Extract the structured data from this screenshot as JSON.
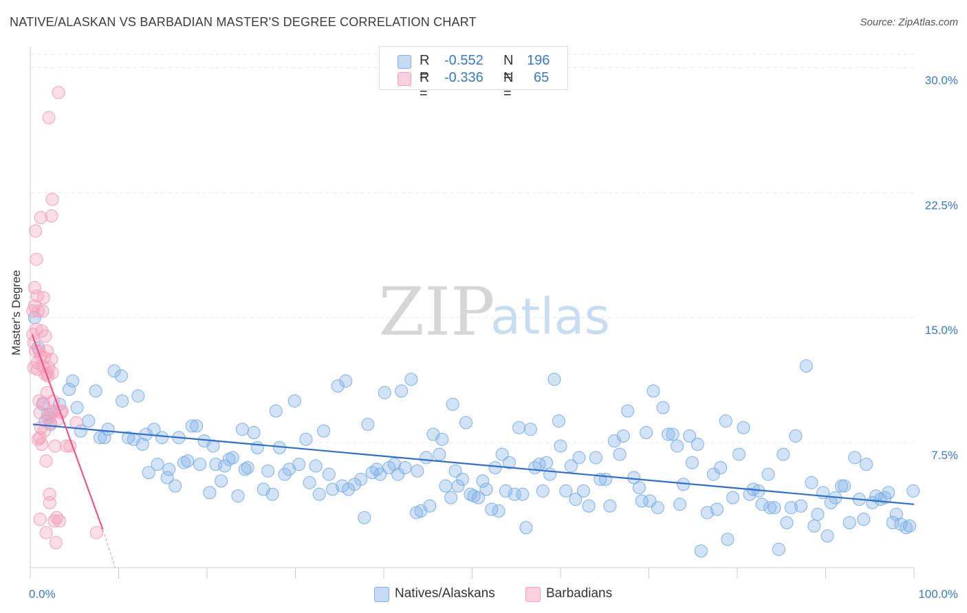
{
  "title": "NATIVE/ALASKAN VS BARBADIAN MASTER'S DEGREE CORRELATION CHART",
  "source": "Source: ZipAtlas.com",
  "watermark": {
    "zip": "ZIP",
    "atlas": "atlas"
  },
  "legend": {
    "rows": [
      {
        "r_label": "R =",
        "r_value": "-0.552",
        "n_label": "N =",
        "n_value": "196",
        "color": "#7eb0e8"
      },
      {
        "r_label": "R =",
        "r_value": "-0.336",
        "n_label": "N =",
        "n_value": "65",
        "color": "#f4a0bb"
      }
    ]
  },
  "chart_data": {
    "type": "scatter",
    "title": "NATIVE/ALASKAN VS BARBADIAN MASTER'S DEGREE CORRELATION CHART",
    "xlabel": "",
    "ylabel": "Master's Degree",
    "xlim": [
      0,
      100
    ],
    "ylim": [
      0,
      30.8
    ],
    "x_tick_labels": [
      "0.0%",
      "100.0%"
    ],
    "y_ticks": [
      7.5,
      15.0,
      22.5,
      30.0
    ],
    "y_tick_labels": [
      "7.5%",
      "15.0%",
      "22.5%",
      "30.0%"
    ],
    "grid": true,
    "legend_position": "bottom-center",
    "series": [
      {
        "name": "Natives/Alaskans",
        "color": "#7eb0e8",
        "line_color": "#2e6fcc",
        "trendline": {
          "x": [
            0.3,
            100
          ],
          "y": [
            8.6,
            3.8
          ]
        },
        "points": [
          [
            0.5,
            15.0
          ],
          [
            0.9,
            13.2
          ],
          [
            1.4,
            9.8
          ],
          [
            1.7,
            8.8
          ],
          [
            2.0,
            9.2
          ],
          [
            2.3,
            8.6
          ],
          [
            2.6,
            9.4
          ],
          [
            3.3,
            9.8
          ],
          [
            4.4,
            10.7
          ],
          [
            4.8,
            11.2
          ],
          [
            5.3,
            9.6
          ],
          [
            5.7,
            8.2
          ],
          [
            6.6,
            8.8
          ],
          [
            7.4,
            10.6
          ],
          [
            7.9,
            7.8
          ],
          [
            8.4,
            7.8
          ],
          [
            8.8,
            8.3
          ],
          [
            9.5,
            11.8
          ],
          [
            10.3,
            11.5
          ],
          [
            10.4,
            10.0
          ],
          [
            11.1,
            7.8
          ],
          [
            11.7,
            7.7
          ],
          [
            12.2,
            10.3
          ],
          [
            12.7,
            7.4
          ],
          [
            13.1,
            8.0
          ],
          [
            13.4,
            5.7
          ],
          [
            14.0,
            8.3
          ],
          [
            14.4,
            6.2
          ],
          [
            14.9,
            7.8
          ],
          [
            15.5,
            5.4
          ],
          [
            15.7,
            5.9
          ],
          [
            16.4,
            4.9
          ],
          [
            16.8,
            7.8
          ],
          [
            17.4,
            6.3
          ],
          [
            17.8,
            6.4
          ],
          [
            18.3,
            8.5
          ],
          [
            18.8,
            8.5
          ],
          [
            19.2,
            6.2
          ],
          [
            19.7,
            7.6
          ],
          [
            20.3,
            4.5
          ],
          [
            20.7,
            7.3
          ],
          [
            21.0,
            6.2
          ],
          [
            21.6,
            5.2
          ],
          [
            22.0,
            6.1
          ],
          [
            22.5,
            6.5
          ],
          [
            22.9,
            6.6
          ],
          [
            23.5,
            4.3
          ],
          [
            24.0,
            8.3
          ],
          [
            24.3,
            5.9
          ],
          [
            24.6,
            6.0
          ],
          [
            25.3,
            8.1
          ],
          [
            25.7,
            7.2
          ],
          [
            26.4,
            4.7
          ],
          [
            26.9,
            5.8
          ],
          [
            27.4,
            4.4
          ],
          [
            27.8,
            9.4
          ],
          [
            28.2,
            7.2
          ],
          [
            28.8,
            5.6
          ],
          [
            29.3,
            5.9
          ],
          [
            29.9,
            10.0
          ],
          [
            30.4,
            6.2
          ],
          [
            31.2,
            7.7
          ],
          [
            31.6,
            5.1
          ],
          [
            32.3,
            6.1
          ],
          [
            32.7,
            4.4
          ],
          [
            33.2,
            8.2
          ],
          [
            33.8,
            5.6
          ],
          [
            34.2,
            4.7
          ],
          [
            34.8,
            10.9
          ],
          [
            35.3,
            4.9
          ],
          [
            35.7,
            11.2
          ],
          [
            36.0,
            4.7
          ],
          [
            36.7,
            5.0
          ],
          [
            37.4,
            5.3
          ],
          [
            37.8,
            3.0
          ],
          [
            38.2,
            8.6
          ],
          [
            38.7,
            5.7
          ],
          [
            39.2,
            5.9
          ],
          [
            39.6,
            5.6
          ],
          [
            40.1,
            10.5
          ],
          [
            40.6,
            6.0
          ],
          [
            41.2,
            6.2
          ],
          [
            41.6,
            5.6
          ],
          [
            42.0,
            10.6
          ],
          [
            42.4,
            6.0
          ],
          [
            43.1,
            11.3
          ],
          [
            43.7,
            3.3
          ],
          [
            43.8,
            5.8
          ],
          [
            44.2,
            3.4
          ],
          [
            44.8,
            6.6
          ],
          [
            45.2,
            3.7
          ],
          [
            45.6,
            8.0
          ],
          [
            46.3,
            6.8
          ],
          [
            46.6,
            7.7
          ],
          [
            47.0,
            4.9
          ],
          [
            47.6,
            4.2
          ],
          [
            47.8,
            9.8
          ],
          [
            48.1,
            5.8
          ],
          [
            48.4,
            4.9
          ],
          [
            48.9,
            5.3
          ],
          [
            49.3,
            8.7
          ],
          [
            49.8,
            4.4
          ],
          [
            50.2,
            4.3
          ],
          [
            50.7,
            4.2
          ],
          [
            51.2,
            5.2
          ],
          [
            51.6,
            4.7
          ],
          [
            52.2,
            3.5
          ],
          [
            52.6,
            6.0
          ],
          [
            53.0,
            3.4
          ],
          [
            53.4,
            6.8
          ],
          [
            53.8,
            4.6
          ],
          [
            54.2,
            6.3
          ],
          [
            54.8,
            4.4
          ],
          [
            55.3,
            8.4
          ],
          [
            55.7,
            4.4
          ],
          [
            56.1,
            2.4
          ],
          [
            56.6,
            8.3
          ],
          [
            57.1,
            6.0
          ],
          [
            57.6,
            6.2
          ],
          [
            58.0,
            4.6
          ],
          [
            58.4,
            6.3
          ],
          [
            58.8,
            5.6
          ],
          [
            59.3,
            11.3
          ],
          [
            59.8,
            8.8
          ],
          [
            60.0,
            7.3
          ],
          [
            60.6,
            4.6
          ],
          [
            61.2,
            6.1
          ],
          [
            61.7,
            4.1
          ],
          [
            62.1,
            6.6
          ],
          [
            62.6,
            4.6
          ],
          [
            63.2,
            3.7
          ],
          [
            64.0,
            6.6
          ],
          [
            64.5,
            5.3
          ],
          [
            65.1,
            5.3
          ],
          [
            65.6,
            3.7
          ],
          [
            66.1,
            7.6
          ],
          [
            66.7,
            6.8
          ],
          [
            67.1,
            7.9
          ],
          [
            67.6,
            9.4
          ],
          [
            68.3,
            5.4
          ],
          [
            68.9,
            4.8
          ],
          [
            69.2,
            4.0
          ],
          [
            69.7,
            8.1
          ],
          [
            70.1,
            4.0
          ],
          [
            70.5,
            10.6
          ],
          [
            71.0,
            3.6
          ],
          [
            71.6,
            9.6
          ],
          [
            72.2,
            8.0
          ],
          [
            72.7,
            8.0
          ],
          [
            73.2,
            7.3
          ],
          [
            73.5,
            3.8
          ],
          [
            73.9,
            5.0
          ],
          [
            74.6,
            7.9
          ],
          [
            74.9,
            6.3
          ],
          [
            75.5,
            7.4
          ],
          [
            75.9,
            1.0
          ],
          [
            76.6,
            3.3
          ],
          [
            77.3,
            5.6
          ],
          [
            77.7,
            3.5
          ],
          [
            78.1,
            6.0
          ],
          [
            78.7,
            8.8
          ],
          [
            78.9,
            1.7
          ],
          [
            79.5,
            4.2
          ],
          [
            80.2,
            6.8
          ],
          [
            80.7,
            8.4
          ],
          [
            81.4,
            4.4
          ],
          [
            81.8,
            4.7
          ],
          [
            82.4,
            4.6
          ],
          [
            82.8,
            3.8
          ],
          [
            83.5,
            5.6
          ],
          [
            83.7,
            3.6
          ],
          [
            84.2,
            3.6
          ],
          [
            84.7,
            1.1
          ],
          [
            85.2,
            6.8
          ],
          [
            85.6,
            2.7
          ],
          [
            86.1,
            3.6
          ],
          [
            86.6,
            7.9
          ],
          [
            87.2,
            3.7
          ],
          [
            87.8,
            12.1
          ],
          [
            88.4,
            5.1
          ],
          [
            88.7,
            2.5
          ],
          [
            89.1,
            3.2
          ],
          [
            89.7,
            4.5
          ],
          [
            90.2,
            1.9
          ],
          [
            90.6,
            3.9
          ],
          [
            91.1,
            4.2
          ],
          [
            91.8,
            4.9
          ],
          [
            92.1,
            4.9
          ],
          [
            92.7,
            2.7
          ],
          [
            93.3,
            6.6
          ],
          [
            93.8,
            4.1
          ],
          [
            94.3,
            2.9
          ],
          [
            94.6,
            6.2
          ],
          [
            95.3,
            3.9
          ],
          [
            95.7,
            4.3
          ],
          [
            96.2,
            4.1
          ],
          [
            96.7,
            4.2
          ],
          [
            97.1,
            4.5
          ],
          [
            97.6,
            2.7
          ],
          [
            98.0,
            3.2
          ],
          [
            98.5,
            2.6
          ],
          [
            99.1,
            2.4
          ],
          [
            99.5,
            2.5
          ],
          [
            99.9,
            4.6
          ]
        ]
      },
      {
        "name": "Barbadians",
        "color": "#f4a0bb",
        "line_color": "#e8578c",
        "trendline": {
          "x": [
            0.2,
            8.2
          ],
          "y": [
            14.0,
            2.3
          ]
        },
        "trendline_dashed": {
          "x": [
            8.2,
            9.6
          ],
          "y": [
            2.3,
            0.0
          ]
        },
        "points": [
          [
            0.3,
            15.4
          ],
          [
            0.3,
            14.0
          ],
          [
            0.4,
            13.5
          ],
          [
            0.4,
            12.0
          ],
          [
            0.5,
            16.8
          ],
          [
            0.5,
            15.7
          ],
          [
            0.6,
            20.2
          ],
          [
            0.6,
            13.0
          ],
          [
            0.7,
            18.5
          ],
          [
            0.7,
            14.3
          ],
          [
            0.8,
            12.3
          ],
          [
            0.8,
            16.3
          ],
          [
            0.8,
            11.9
          ],
          [
            0.9,
            15.4
          ],
          [
            0.9,
            7.7
          ],
          [
            1.0,
            10.0
          ],
          [
            1.0,
            13.0
          ],
          [
            1.1,
            9.3
          ],
          [
            1.1,
            7.8
          ],
          [
            1.2,
            12.7
          ],
          [
            1.2,
            8.4
          ],
          [
            1.2,
            21.0
          ],
          [
            1.3,
            14.2
          ],
          [
            1.3,
            7.4
          ],
          [
            1.4,
            15.4
          ],
          [
            1.4,
            12.1
          ],
          [
            1.5,
            16.2
          ],
          [
            1.5,
            9.9
          ],
          [
            1.6,
            12.6
          ],
          [
            1.6,
            8.2
          ],
          [
            1.7,
            13.9
          ],
          [
            1.7,
            11.6
          ],
          [
            1.8,
            2.1
          ],
          [
            1.8,
            6.4
          ],
          [
            1.9,
            13.0
          ],
          [
            1.9,
            10.5
          ],
          [
            2.0,
            11.5
          ],
          [
            2.0,
            9.0
          ],
          [
            2.1,
            27.0
          ],
          [
            2.1,
            12.0
          ],
          [
            2.2,
            4.4
          ],
          [
            2.2,
            3.9
          ],
          [
            2.3,
            8.7
          ],
          [
            2.3,
            9.2
          ],
          [
            2.4,
            21.1
          ],
          [
            2.4,
            12.5
          ],
          [
            2.5,
            11.7
          ],
          [
            2.5,
            22.1
          ],
          [
            2.6,
            10.0
          ],
          [
            2.6,
            9.4
          ],
          [
            2.7,
            2.8
          ],
          [
            2.8,
            7.3
          ],
          [
            2.9,
            1.5
          ],
          [
            3.0,
            3.0
          ],
          [
            3.1,
            8.9
          ],
          [
            3.2,
            28.5
          ],
          [
            3.3,
            2.8
          ],
          [
            3.5,
            9.3
          ],
          [
            3.6,
            9.4
          ],
          [
            4.1,
            7.3
          ],
          [
            4.5,
            7.3
          ],
          [
            5.2,
            8.7
          ],
          [
            7.5,
            2.1
          ],
          [
            1.1,
            2.9
          ],
          [
            1.9,
            11.7
          ]
        ]
      }
    ]
  }
}
